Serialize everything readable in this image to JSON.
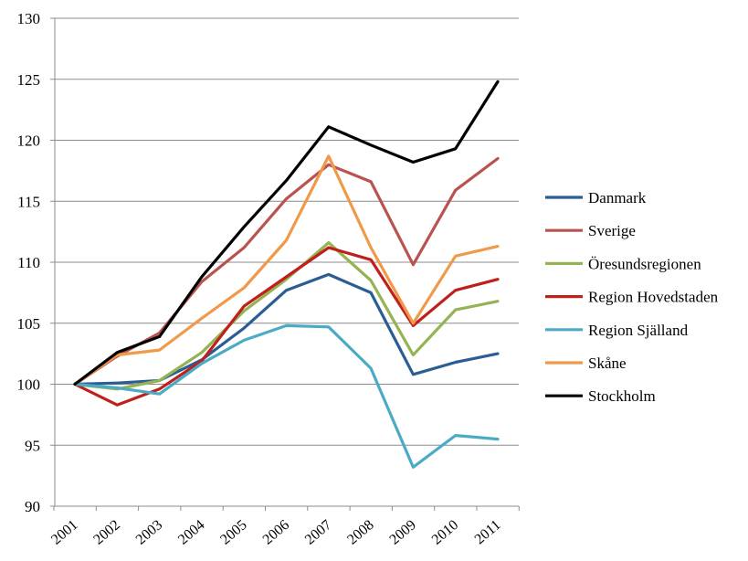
{
  "chart_data": {
    "type": "line",
    "title": "",
    "xlabel": "",
    "ylabel": "",
    "ylim": [
      90,
      130
    ],
    "yticks": [
      90,
      95,
      100,
      105,
      110,
      115,
      120,
      125,
      130
    ],
    "grid": "horizontal",
    "legend_position": "right",
    "categories": [
      "2001",
      "2002",
      "2003",
      "2004",
      "2005",
      "2006",
      "2007",
      "2008",
      "2009",
      "2010",
      "2011"
    ],
    "series": [
      {
        "name": "Danmark",
        "color": "#2a5d94",
        "values": [
          100,
          100.1,
          100.3,
          102.0,
          104.6,
          107.7,
          109.0,
          107.5,
          100.8,
          101.8,
          102.5
        ]
      },
      {
        "name": "Sverige",
        "color": "#b95350",
        "values": [
          100,
          102.3,
          104.2,
          108.4,
          111.2,
          115.2,
          118.0,
          116.6,
          109.8,
          115.9,
          118.5
        ]
      },
      {
        "name": "Öresundsregionen",
        "color": "#94b454",
        "values": [
          100,
          99.6,
          100.3,
          102.6,
          106.0,
          108.6,
          111.6,
          108.5,
          102.4,
          106.1,
          106.8
        ]
      },
      {
        "name": "Region Hovedstaden",
        "color": "#c0201c",
        "values": [
          100,
          98.3,
          99.6,
          101.9,
          106.4,
          108.8,
          111.2,
          110.2,
          104.8,
          107.7,
          108.6
        ]
      },
      {
        "name": "Region Själland",
        "color": "#4babc5",
        "values": [
          100,
          99.7,
          99.2,
          101.7,
          103.6,
          104.8,
          104.7,
          101.3,
          93.2,
          95.8,
          95.5
        ]
      },
      {
        "name": "Skåne",
        "color": "#f0994a",
        "values": [
          100,
          102.4,
          102.8,
          105.4,
          107.9,
          111.8,
          118.7,
          111.2,
          105.0,
          110.5,
          111.3
        ]
      },
      {
        "name": "Stockholm",
        "color": "#000000",
        "values": [
          100,
          102.6,
          103.9,
          108.8,
          112.9,
          116.7,
          121.1,
          119.6,
          118.2,
          119.3,
          124.8
        ]
      }
    ]
  }
}
